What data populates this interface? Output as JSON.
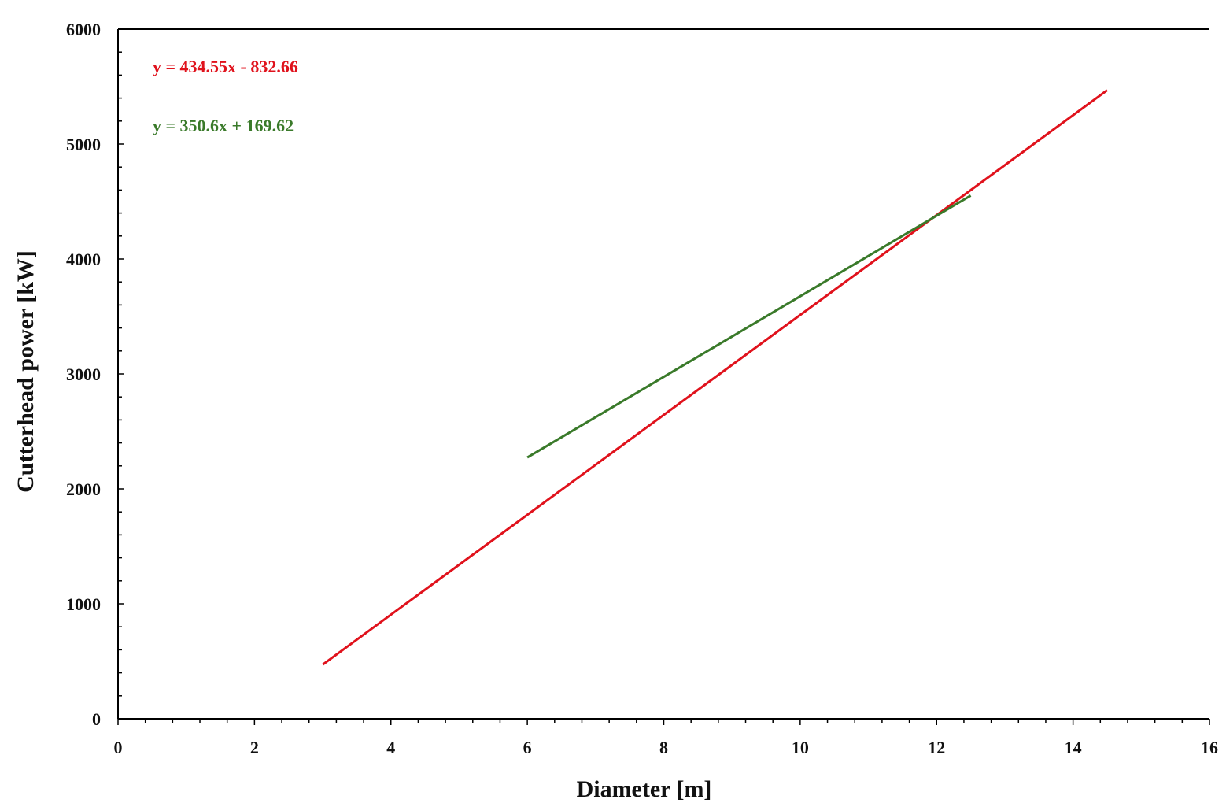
{
  "chart_data": {
    "type": "line",
    "title": "",
    "xlabel": "Diameter [m]",
    "ylabel": "Cutterhead power [kW]",
    "xlim": [
      0,
      16
    ],
    "ylim": [
      0,
      6000
    ],
    "x_ticks": [
      0,
      2,
      4,
      6,
      8,
      10,
      12,
      14,
      16
    ],
    "y_ticks": [
      0,
      1000,
      2000,
      3000,
      4000,
      5000,
      6000
    ],
    "x_tick_labels": [
      "0",
      "2",
      "4",
      "6",
      "8",
      "10",
      "12",
      "14",
      "16"
    ],
    "y_tick_labels": [
      "0",
      "1000",
      "2000",
      "3000",
      "4000",
      "5000",
      "6000"
    ],
    "grid": false,
    "series": [
      {
        "color": "#e0121c",
        "x": [
          3,
          14.5
        ],
        "y": [
          470.99,
          5468.32
        ],
        "equation": "y = 434.55x - 832.66"
      },
      {
        "color": "#3a7a2a",
        "x": [
          6,
          12.5
        ],
        "y": [
          2273.22,
          4552.12
        ],
        "equation": "y = 350.6x + 169.62"
      }
    ]
  }
}
